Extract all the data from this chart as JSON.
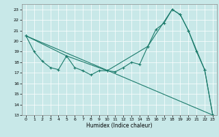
{
  "title": "",
  "xlabel": "Humidex (Indice chaleur)",
  "ylabel": "",
  "xlim": [
    -0.5,
    23.5
  ],
  "ylim": [
    13,
    23.5
  ],
  "yticks": [
    13,
    14,
    15,
    16,
    17,
    18,
    19,
    20,
    21,
    22,
    23
  ],
  "xticks": [
    0,
    1,
    2,
    3,
    4,
    5,
    6,
    7,
    8,
    9,
    10,
    11,
    12,
    13,
    14,
    15,
    16,
    17,
    18,
    19,
    20,
    21,
    22,
    23
  ],
  "bg_color": "#c8e8e8",
  "line_color": "#1a7a6a",
  "grid_color": "#ffffff",
  "line1_x": [
    0,
    1,
    2,
    3,
    4,
    5,
    6,
    7,
    8,
    9,
    10,
    11,
    12,
    13,
    14,
    15,
    16,
    17,
    18,
    19,
    20,
    21,
    22,
    23
  ],
  "line1_y": [
    20.5,
    19.0,
    18.1,
    17.5,
    17.3,
    18.6,
    17.5,
    17.2,
    16.8,
    17.2,
    17.2,
    17.1,
    17.5,
    18.0,
    17.8,
    19.5,
    21.1,
    21.7,
    23.0,
    22.5,
    21.0,
    19.0,
    17.3,
    13.0
  ],
  "line2_x": [
    0,
    5,
    10,
    15,
    18,
    19,
    20,
    22,
    23
  ],
  "line2_y": [
    20.5,
    18.6,
    17.2,
    19.5,
    23.0,
    22.5,
    21.0,
    17.3,
    13.0
  ],
  "line3_x": [
    0,
    23
  ],
  "line3_y": [
    20.5,
    13.0
  ]
}
